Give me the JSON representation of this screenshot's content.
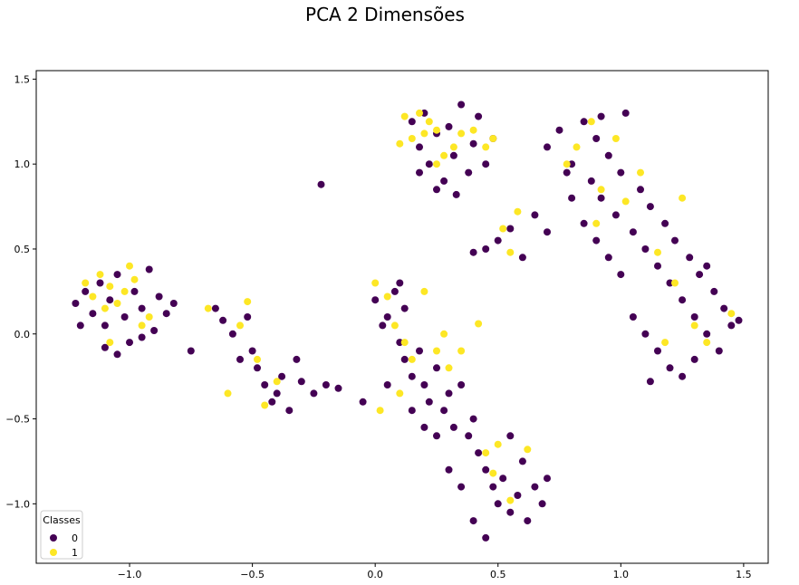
{
  "chart_data": {
    "type": "scatter",
    "title": "PCA 2 Dimensões",
    "xlabel": "",
    "ylabel": "",
    "xlim": [
      -1.38,
      1.6
    ],
    "ylim": [
      -1.35,
      1.55
    ],
    "x_ticks": [
      -1.0,
      -0.5,
      0.0,
      0.5,
      1.0,
      1.5
    ],
    "x_tick_labels": [
      "−1.0",
      "−0.5",
      "0.0",
      "0.5",
      "1.0",
      "1.5"
    ],
    "y_ticks": [
      -1.0,
      -0.5,
      0.0,
      0.5,
      1.0,
      1.5
    ],
    "y_tick_labels": [
      "−1.0",
      "−0.5",
      "0.0",
      "0.5",
      "1.0",
      "1.5"
    ],
    "grid": false,
    "legend": {
      "title": "Classes",
      "placement": "lower-left",
      "entries": [
        {
          "label": "0",
          "color": "#440154"
        },
        {
          "label": "1",
          "color": "#fde725"
        }
      ]
    },
    "series": [
      {
        "name": "0",
        "color": "#440154",
        "points": [
          [
            -1.22,
            0.18
          ],
          [
            -1.18,
            0.25
          ],
          [
            -1.15,
            0.12
          ],
          [
            -1.12,
            0.3
          ],
          [
            -1.1,
            0.05
          ],
          [
            -1.08,
            0.2
          ],
          [
            -1.05,
            0.35
          ],
          [
            -1.02,
            0.1
          ],
          [
            -1.0,
            -0.05
          ],
          [
            -0.98,
            0.25
          ],
          [
            -0.95,
            0.15
          ],
          [
            -0.92,
            0.38
          ],
          [
            -0.9,
            0.02
          ],
          [
            -0.88,
            0.22
          ],
          [
            -0.85,
            0.12
          ],
          [
            -1.1,
            -0.08
          ],
          [
            -1.05,
            -0.12
          ],
          [
            -0.95,
            -0.02
          ],
          [
            -1.2,
            0.05
          ],
          [
            -0.82,
            0.18
          ],
          [
            -0.65,
            0.15
          ],
          [
            -0.62,
            0.08
          ],
          [
            -0.58,
            0.0
          ],
          [
            -0.55,
            -0.15
          ],
          [
            -0.52,
            0.1
          ],
          [
            -0.5,
            -0.1
          ],
          [
            -0.48,
            -0.2
          ],
          [
            -0.45,
            -0.3
          ],
          [
            -0.42,
            -0.4
          ],
          [
            -0.4,
            -0.35
          ],
          [
            -0.38,
            -0.25
          ],
          [
            -0.35,
            -0.45
          ],
          [
            -0.32,
            -0.15
          ],
          [
            -0.3,
            -0.28
          ],
          [
            -0.25,
            -0.35
          ],
          [
            -0.22,
            0.88
          ],
          [
            -0.75,
            -0.1
          ],
          [
            -0.2,
            -0.3
          ],
          [
            -0.15,
            -0.32
          ],
          [
            0.0,
            0.2
          ],
          [
            0.05,
            0.1
          ],
          [
            0.08,
            0.25
          ],
          [
            0.1,
            -0.05
          ],
          [
            0.12,
            -0.15
          ],
          [
            0.15,
            -0.25
          ],
          [
            0.18,
            -0.1
          ],
          [
            0.2,
            -0.3
          ],
          [
            0.22,
            -0.4
          ],
          [
            0.25,
            -0.2
          ],
          [
            0.28,
            -0.45
          ],
          [
            0.3,
            -0.35
          ],
          [
            0.32,
            -0.55
          ],
          [
            0.35,
            -0.3
          ],
          [
            0.38,
            -0.6
          ],
          [
            0.4,
            -0.5
          ],
          [
            0.42,
            -0.7
          ],
          [
            0.45,
            -0.8
          ],
          [
            0.48,
            -0.9
          ],
          [
            0.5,
            -1.0
          ],
          [
            0.52,
            -0.85
          ],
          [
            0.55,
            -1.05
          ],
          [
            0.58,
            -0.95
          ],
          [
            0.6,
            -0.75
          ],
          [
            0.62,
            -1.1
          ],
          [
            0.65,
            -0.9
          ],
          [
            0.68,
            -1.0
          ],
          [
            0.35,
            -0.9
          ],
          [
            0.3,
            -0.8
          ],
          [
            0.4,
            -1.1
          ],
          [
            0.45,
            -1.2
          ],
          [
            0.25,
            -0.6
          ],
          [
            0.2,
            -0.55
          ],
          [
            0.15,
            -0.45
          ],
          [
            0.05,
            -0.3
          ],
          [
            -0.05,
            -0.4
          ],
          [
            0.1,
            0.3
          ],
          [
            0.03,
            0.05
          ],
          [
            0.12,
            0.15
          ],
          [
            0.55,
            -0.6
          ],
          [
            0.7,
            -0.85
          ],
          [
            0.15,
            1.25
          ],
          [
            0.18,
            1.1
          ],
          [
            0.2,
            1.3
          ],
          [
            0.22,
            1.0
          ],
          [
            0.25,
            1.18
          ],
          [
            0.28,
            0.9
          ],
          [
            0.3,
            1.22
          ],
          [
            0.32,
            1.05
          ],
          [
            0.35,
            1.35
          ],
          [
            0.38,
            0.95
          ],
          [
            0.4,
            1.12
          ],
          [
            0.42,
            1.28
          ],
          [
            0.45,
            1.0
          ],
          [
            0.48,
            1.15
          ],
          [
            0.25,
            0.85
          ],
          [
            0.18,
            0.95
          ],
          [
            0.33,
            0.82
          ],
          [
            0.5,
            0.55
          ],
          [
            0.55,
            0.62
          ],
          [
            0.6,
            0.45
          ],
          [
            0.65,
            0.7
          ],
          [
            0.7,
            0.6
          ],
          [
            0.45,
            0.5
          ],
          [
            0.4,
            0.48
          ],
          [
            0.7,
            1.1
          ],
          [
            0.75,
            1.2
          ],
          [
            0.8,
            1.0
          ],
          [
            0.85,
            1.25
          ],
          [
            0.88,
            0.9
          ],
          [
            0.9,
            1.15
          ],
          [
            0.92,
            0.8
          ],
          [
            0.95,
            1.05
          ],
          [
            0.98,
            0.7
          ],
          [
            1.0,
            0.95
          ],
          [
            1.02,
            1.3
          ],
          [
            1.05,
            0.6
          ],
          [
            1.08,
            0.85
          ],
          [
            1.1,
            0.5
          ],
          [
            1.12,
            0.75
          ],
          [
            1.15,
            0.4
          ],
          [
            1.18,
            0.65
          ],
          [
            1.2,
            0.3
          ],
          [
            1.22,
            0.55
          ],
          [
            1.25,
            0.2
          ],
          [
            1.28,
            0.45
          ],
          [
            1.3,
            0.1
          ],
          [
            1.32,
            0.35
          ],
          [
            1.35,
            0.0
          ],
          [
            1.38,
            0.25
          ],
          [
            1.4,
            -0.1
          ],
          [
            1.42,
            0.15
          ],
          [
            1.45,
            0.05
          ],
          [
            1.48,
            0.08
          ],
          [
            1.05,
            0.1
          ],
          [
            1.1,
            0.0
          ],
          [
            1.15,
            -0.1
          ],
          [
            1.2,
            -0.2
          ],
          [
            1.25,
            -0.25
          ],
          [
            1.0,
            0.35
          ],
          [
            0.95,
            0.45
          ],
          [
            0.85,
            0.65
          ],
          [
            0.8,
            0.8
          ],
          [
            0.9,
            0.55
          ],
          [
            1.12,
            -0.28
          ],
          [
            1.3,
            -0.15
          ],
          [
            0.92,
            1.28
          ],
          [
            1.35,
            0.4
          ],
          [
            0.78,
            0.95
          ]
        ]
      },
      {
        "name": "1",
        "color": "#fde725",
        "points": [
          [
            -1.18,
            0.3
          ],
          [
            -1.12,
            0.35
          ],
          [
            -1.08,
            0.28
          ],
          [
            -1.05,
            0.18
          ],
          [
            -1.0,
            0.4
          ],
          [
            -0.98,
            0.32
          ],
          [
            -0.95,
            0.05
          ],
          [
            -1.1,
            0.15
          ],
          [
            -1.15,
            0.22
          ],
          [
            -1.02,
            0.25
          ],
          [
            -0.92,
            0.1
          ],
          [
            -1.08,
            -0.05
          ],
          [
            -0.68,
            0.15
          ],
          [
            -0.6,
            -0.35
          ],
          [
            -0.55,
            0.05
          ],
          [
            -0.52,
            0.19
          ],
          [
            -0.48,
            -0.15
          ],
          [
            -0.45,
            -0.42
          ],
          [
            -0.4,
            -0.28
          ],
          [
            0.0,
            0.3
          ],
          [
            0.05,
            0.22
          ],
          [
            0.08,
            0.05
          ],
          [
            0.12,
            -0.05
          ],
          [
            0.15,
            -0.15
          ],
          [
            0.2,
            0.25
          ],
          [
            0.25,
            -0.1
          ],
          [
            0.28,
            0.0
          ],
          [
            0.3,
            -0.2
          ],
          [
            0.42,
            0.06
          ],
          [
            0.02,
            -0.45
          ],
          [
            0.45,
            -0.7
          ],
          [
            0.5,
            -0.65
          ],
          [
            0.48,
            -0.82
          ],
          [
            0.55,
            -0.98
          ],
          [
            0.62,
            -0.68
          ],
          [
            0.35,
            -0.1
          ],
          [
            0.1,
            -0.35
          ],
          [
            0.12,
            1.28
          ],
          [
            0.18,
            1.3
          ],
          [
            0.22,
            1.25
          ],
          [
            0.25,
            1.2
          ],
          [
            0.2,
            1.18
          ],
          [
            0.15,
            1.15
          ],
          [
            0.28,
            1.05
          ],
          [
            0.32,
            1.1
          ],
          [
            0.4,
            1.2
          ],
          [
            0.45,
            1.1
          ],
          [
            0.48,
            1.15
          ],
          [
            0.1,
            1.12
          ],
          [
            0.35,
            1.18
          ],
          [
            0.25,
            1.0
          ],
          [
            0.55,
            0.48
          ],
          [
            0.58,
            0.72
          ],
          [
            0.52,
            0.62
          ],
          [
            0.78,
            1.0
          ],
          [
            0.82,
            1.1
          ],
          [
            0.88,
            1.25
          ],
          [
            0.92,
            0.85
          ],
          [
            0.98,
            1.15
          ],
          [
            1.02,
            0.78
          ],
          [
            1.08,
            0.95
          ],
          [
            1.15,
            0.48
          ],
          [
            1.25,
            0.8
          ],
          [
            1.22,
            0.3
          ],
          [
            1.3,
            0.05
          ],
          [
            1.35,
            -0.05
          ],
          [
            1.45,
            0.12
          ],
          [
            1.18,
            -0.05
          ],
          [
            0.9,
            0.65
          ]
        ]
      }
    ]
  }
}
